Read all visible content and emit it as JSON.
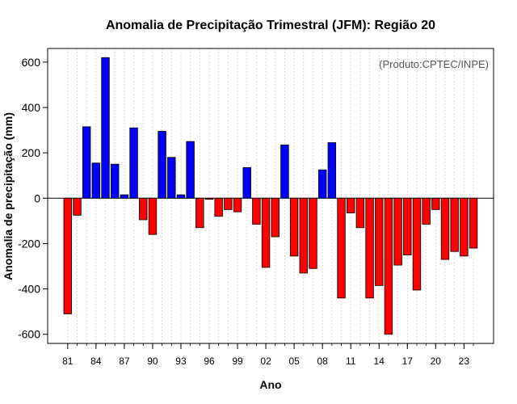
{
  "chart_data": {
    "type": "bar",
    "title": "Anomalia de Precipitação Trimestral (JFM): Região 20",
    "xlabel": "Ano",
    "ylabel": "Anomalia de precipitação (mm)",
    "credit": "(Produto:CPTEC/INPE)",
    "ylim": [
      -650,
      670
    ],
    "yticks": [
      -600,
      -400,
      -200,
      0,
      200,
      400,
      600
    ],
    "xtick_labels": [
      "81",
      "84",
      "87",
      "90",
      "93",
      "96",
      "99",
      "02",
      "05",
      "08",
      "11",
      "14",
      "17",
      "20",
      "23"
    ],
    "xtick_every": 3,
    "grid": true,
    "colors": {
      "positive": "#0000ff",
      "negative": "#ff0000",
      "outline": "#000000",
      "grid": "#d3d3d3"
    },
    "categories": [
      "1981",
      "1982",
      "1983",
      "1984",
      "1985",
      "1986",
      "1987",
      "1988",
      "1989",
      "1990",
      "1991",
      "1992",
      "1993",
      "1994",
      "1995",
      "1996",
      "1997",
      "1998",
      "1999",
      "2000",
      "2001",
      "2002",
      "2003",
      "2004",
      "2005",
      "2006",
      "2007",
      "2008",
      "2009",
      "2010",
      "2011",
      "2012",
      "2013",
      "2014",
      "2015",
      "2016",
      "2017",
      "2018",
      "2019",
      "2020",
      "2021",
      "2022",
      "2023",
      "2024"
    ],
    "values": [
      -510,
      -75,
      315,
      155,
      620,
      150,
      15,
      310,
      -95,
      -160,
      295,
      180,
      15,
      250,
      -130,
      -5,
      -80,
      -50,
      -60,
      135,
      -115,
      -305,
      -170,
      235,
      -255,
      -330,
      -310,
      125,
      245,
      -440,
      -65,
      -130,
      -440,
      -385,
      -600,
      -295,
      -250,
      -405,
      -115,
      -50,
      -270,
      -235,
      -255,
      -220
    ]
  }
}
